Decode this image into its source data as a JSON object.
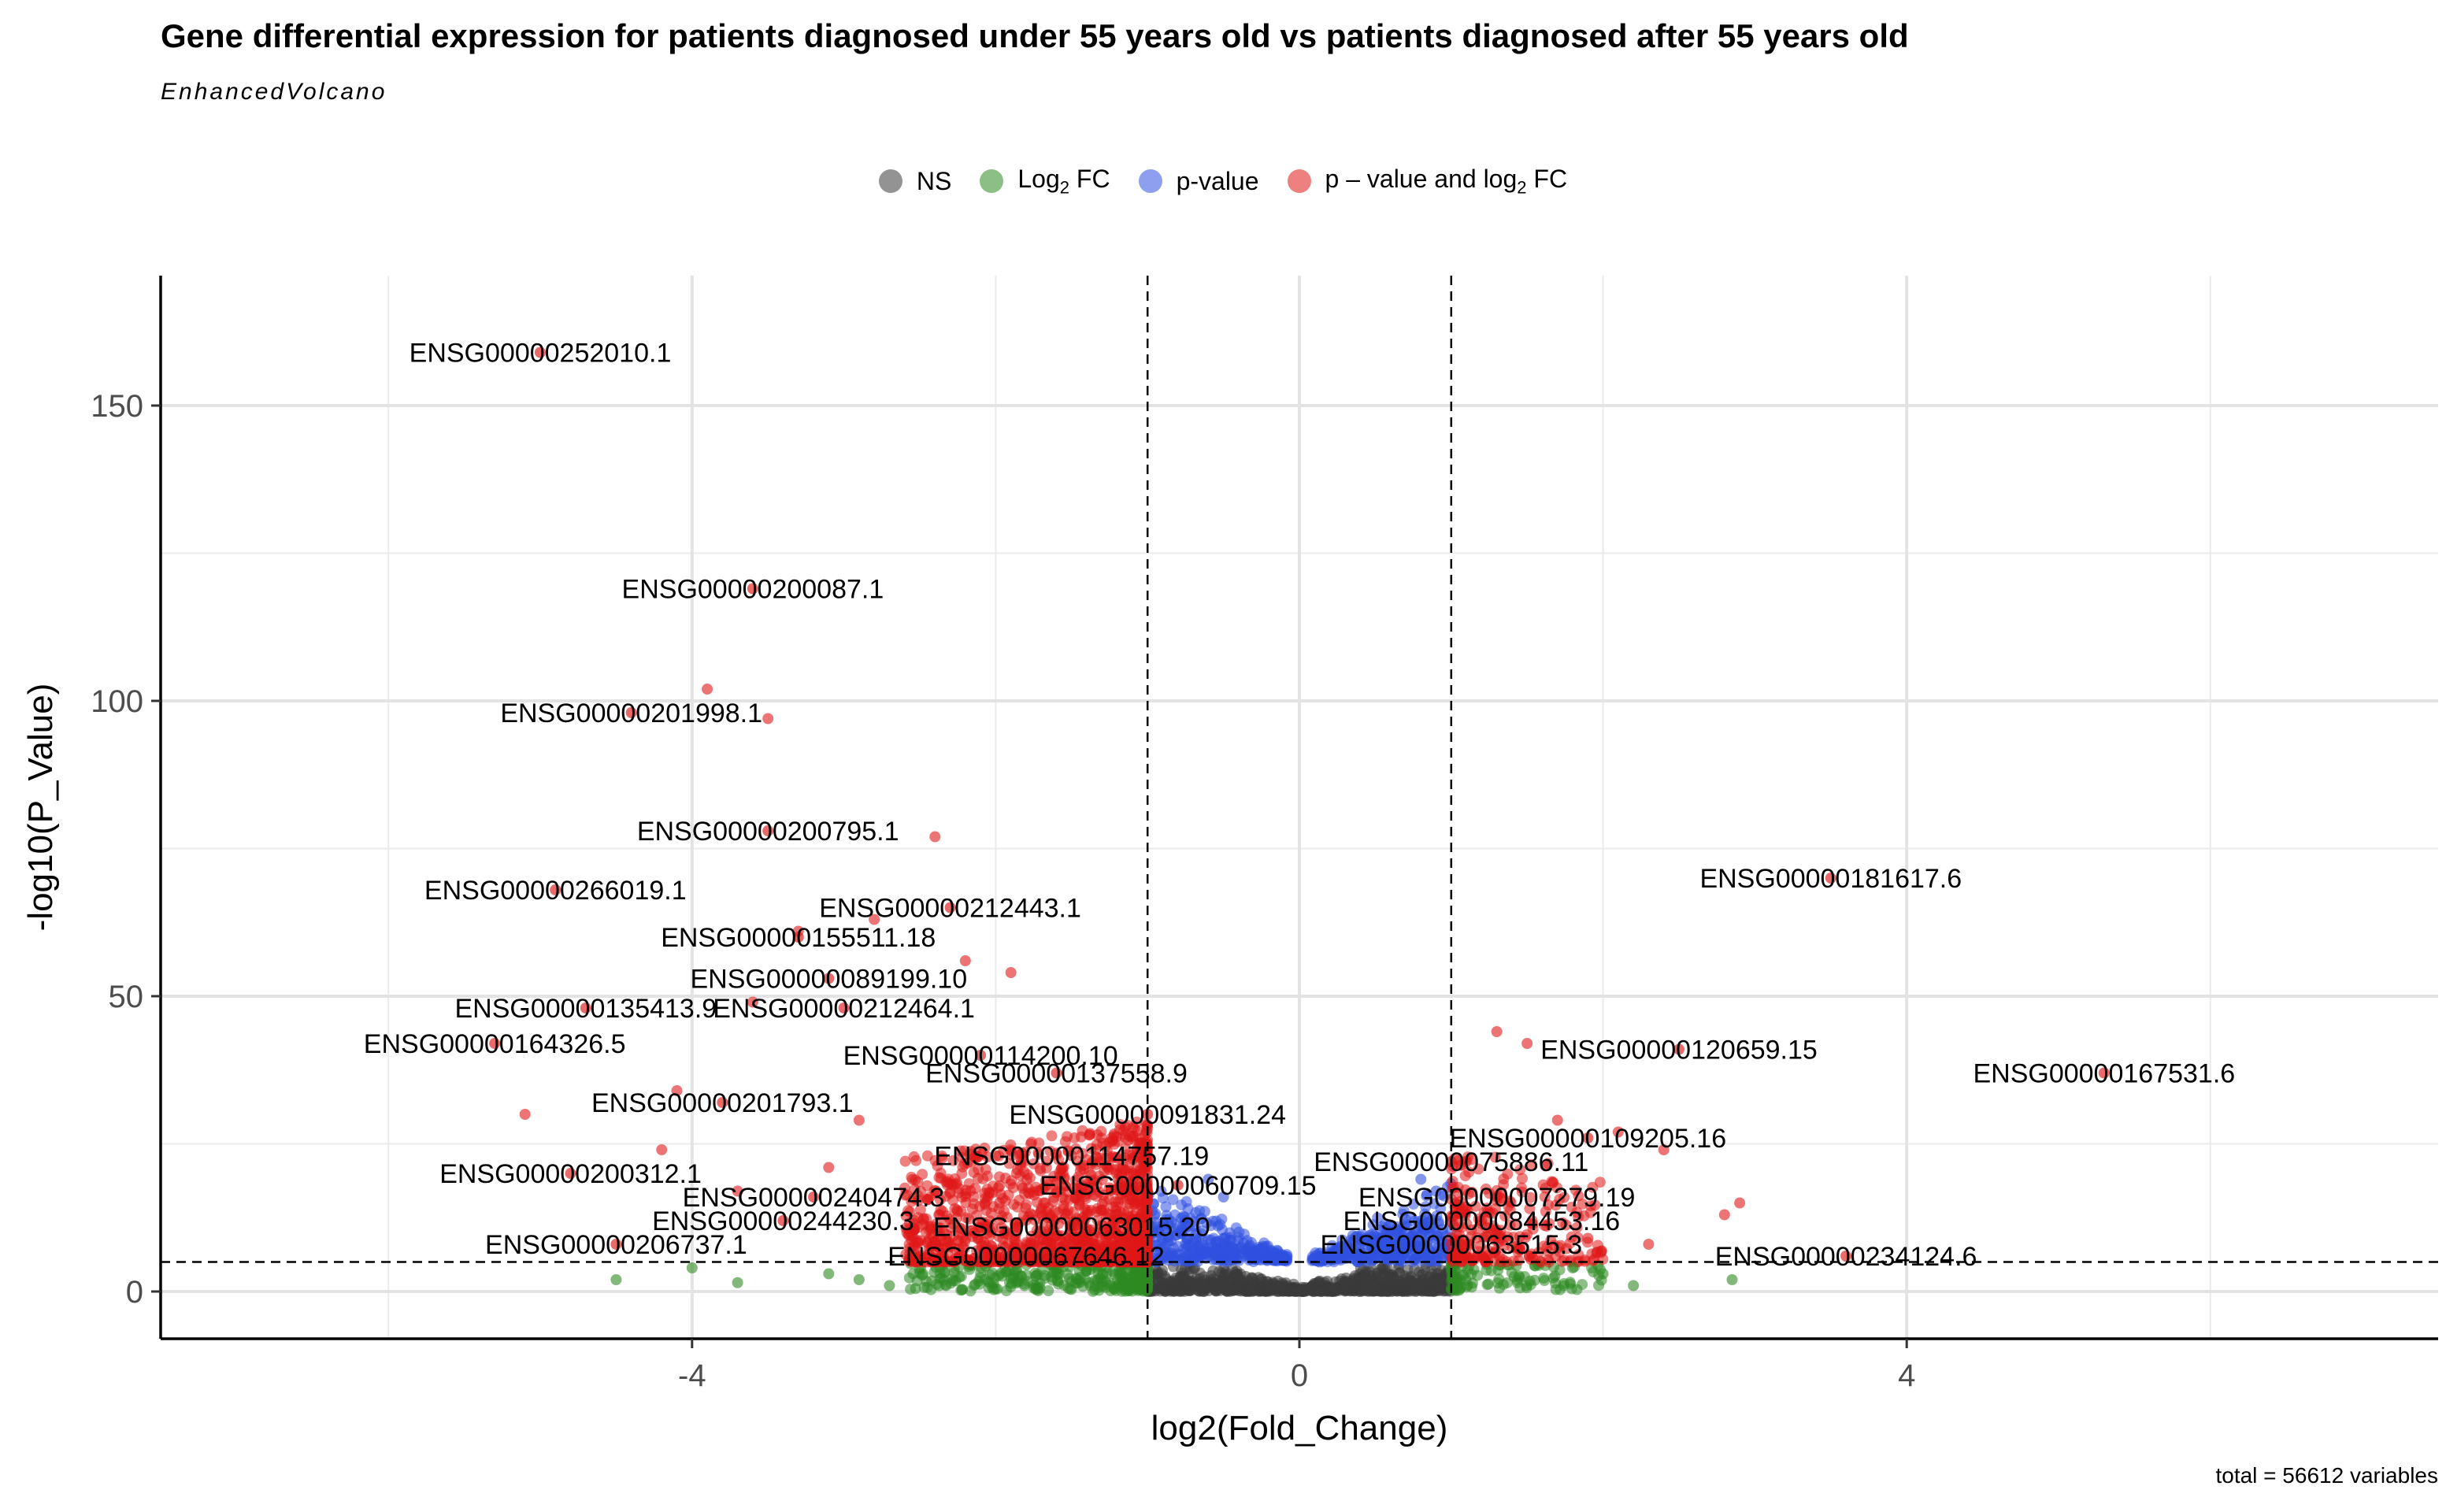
{
  "chart_data": {
    "type": "scatter",
    "title": "Gene differential expression for patients diagnosed under 55 years old vs patients diagnosed after 55 years old",
    "subtitle": "EnhancedVolcano",
    "xlabel": "log2(Fold_Change)",
    "ylabel": "-log10(P_Value)",
    "caption": "total = 56612 variables",
    "xlim": [
      -7.5,
      7.5
    ],
    "ylim": [
      -8,
      172
    ],
    "x_ticks": [
      -4,
      0,
      4
    ],
    "x_tick_labels": [
      "-4",
      "0",
      "4"
    ],
    "y_ticks": [
      0,
      50,
      100,
      150
    ],
    "y_tick_labels": [
      "0",
      "50",
      "100",
      "150"
    ],
    "fc_cutoff": 1,
    "p_cutoff_line": 5,
    "grid": true,
    "legend_position": "top",
    "legend": [
      {
        "name": "NS",
        "color": "#3a3a3a"
      },
      {
        "name": "Log2 FC",
        "color": "#2e8b22"
      },
      {
        "name": "p-value",
        "color": "#3050e0"
      },
      {
        "name": "p – value and log2 FC",
        "color": "#e01818"
      }
    ],
    "labeled_genes": [
      {
        "label": "ENSG00000252010.1",
        "x": -5.0,
        "y": 159
      },
      {
        "label": "ENSG00000200087.1",
        "x": -3.6,
        "y": 119
      },
      {
        "label": "ENSG00000201998.1",
        "x": -4.4,
        "y": 98
      },
      {
        "label": "ENSG00000200795.1",
        "x": -3.5,
        "y": 78
      },
      {
        "label": "ENSG00000266019.1",
        "x": -4.9,
        "y": 68
      },
      {
        "label": "ENSG00000212443.1",
        "x": -2.3,
        "y": 65
      },
      {
        "label": "ENSG00000155511.18",
        "x": -3.3,
        "y": 60
      },
      {
        "label": "ENSG00000089199.10",
        "x": -3.1,
        "y": 53
      },
      {
        "label": "ENSG00000135413.9",
        "x": -4.7,
        "y": 48
      },
      {
        "label": "ENSG00000212464.1",
        "x": -3.0,
        "y": 48
      },
      {
        "label": "ENSG00000164326.5",
        "x": -5.3,
        "y": 42
      },
      {
        "label": "ENSG00000114200.10",
        "x": -2.1,
        "y": 40
      },
      {
        "label": "ENSG00000137558.9",
        "x": -1.6,
        "y": 37
      },
      {
        "label": "ENSG00000201793.1",
        "x": -3.8,
        "y": 32
      },
      {
        "label": "ENSG00000091831.24",
        "x": -1.0,
        "y": 30
      },
      {
        "label": "ENSG00000114757.19",
        "x": -1.5,
        "y": 23
      },
      {
        "label": "ENSG00000200312.1",
        "x": -4.8,
        "y": 20
      },
      {
        "label": "ENSG00000060709.15",
        "x": -0.8,
        "y": 18
      },
      {
        "label": "ENSG00000240474.3",
        "x": -3.2,
        "y": 16
      },
      {
        "label": "ENSG00000244230.3",
        "x": -3.4,
        "y": 12
      },
      {
        "label": "ENSG00000063015.20",
        "x": -1.5,
        "y": 11
      },
      {
        "label": "ENSG00000206737.1",
        "x": -4.5,
        "y": 8
      },
      {
        "label": "ENSG00000067646.12",
        "x": -1.8,
        "y": 6
      },
      {
        "label": "ENSG00000181617.6",
        "x": 3.5,
        "y": 70
      },
      {
        "label": "ENSG00000120659.15",
        "x": 2.5,
        "y": 41
      },
      {
        "label": "ENSG00000167531.6",
        "x": 5.3,
        "y": 37
      },
      {
        "label": "ENSG00000109205.16",
        "x": 1.9,
        "y": 26
      },
      {
        "label": "ENSG00000075886.11",
        "x": 1.0,
        "y": 22
      },
      {
        "label": "ENSG00000007279.19",
        "x": 1.3,
        "y": 16
      },
      {
        "label": "ENSG00000084453.16",
        "x": 1.2,
        "y": 12
      },
      {
        "label": "ENSG00000063515.3",
        "x": 1.0,
        "y": 8
      },
      {
        "label": "ENSG00000234124.6",
        "x": 3.6,
        "y": 6
      }
    ],
    "extra_points": [
      {
        "x": -3.9,
        "y": 102,
        "group": "p – value and log2 FC"
      },
      {
        "x": -3.5,
        "y": 97,
        "group": "p – value and log2 FC"
      },
      {
        "x": -2.4,
        "y": 77,
        "group": "p – value and log2 FC"
      },
      {
        "x": -2.8,
        "y": 63,
        "group": "p – value and log2 FC"
      },
      {
        "x": -3.3,
        "y": 61,
        "group": "p – value and log2 FC"
      },
      {
        "x": -2.2,
        "y": 56,
        "group": "p – value and log2 FC"
      },
      {
        "x": -1.9,
        "y": 54,
        "group": "p – value and log2 FC"
      },
      {
        "x": -3.6,
        "y": 49,
        "group": "p – value and log2 FC"
      },
      {
        "x": -4.1,
        "y": 34,
        "group": "p – value and log2 FC"
      },
      {
        "x": -5.1,
        "y": 30,
        "group": "p – value and log2 FC"
      },
      {
        "x": -2.9,
        "y": 29,
        "group": "p – value and log2 FC"
      },
      {
        "x": -4.2,
        "y": 24,
        "group": "p – value and log2 FC"
      },
      {
        "x": -3.1,
        "y": 21,
        "group": "p – value and log2 FC"
      },
      {
        "x": -3.7,
        "y": 17,
        "group": "p – value and log2 FC"
      },
      {
        "x": 1.3,
        "y": 44,
        "group": "p – value and log2 FC"
      },
      {
        "x": 1.5,
        "y": 42,
        "group": "p – value and log2 FC"
      },
      {
        "x": 1.7,
        "y": 29,
        "group": "p – value and log2 FC"
      },
      {
        "x": 2.1,
        "y": 27,
        "group": "p – value and log2 FC"
      },
      {
        "x": 2.4,
        "y": 24,
        "group": "p – value and log2 FC"
      },
      {
        "x": 2.9,
        "y": 15,
        "group": "p – value and log2 FC"
      },
      {
        "x": 2.8,
        "y": 13,
        "group": "p – value and log2 FC"
      },
      {
        "x": 2.3,
        "y": 8,
        "group": "p – value and log2 FC"
      },
      {
        "x": 1.9,
        "y": 9,
        "group": "p – value and log2 FC"
      },
      {
        "x": -4.5,
        "y": 2,
        "group": "Log2 FC"
      },
      {
        "x": -4.0,
        "y": 4,
        "group": "Log2 FC"
      },
      {
        "x": -3.7,
        "y": 1.5,
        "group": "Log2 FC"
      },
      {
        "x": -3.1,
        "y": 3,
        "group": "Log2 FC"
      },
      {
        "x": -2.9,
        "y": 2,
        "group": "Log2 FC"
      },
      {
        "x": -2.7,
        "y": 1,
        "group": "Log2 FC"
      },
      {
        "x": 1.8,
        "y": 4,
        "group": "Log2 FC"
      },
      {
        "x": 2.0,
        "y": 3,
        "group": "Log2 FC"
      },
      {
        "x": 2.2,
        "y": 1,
        "group": "Log2 FC"
      },
      {
        "x": 2.85,
        "y": 2,
        "group": "Log2 FC"
      },
      {
        "x": 0.8,
        "y": 19,
        "group": "p-value"
      },
      {
        "x": 0.9,
        "y": 17,
        "group": "p-value"
      },
      {
        "x": -0.6,
        "y": 19,
        "group": "p-value"
      },
      {
        "x": -0.5,
        "y": 16,
        "group": "p-value"
      }
    ]
  }
}
